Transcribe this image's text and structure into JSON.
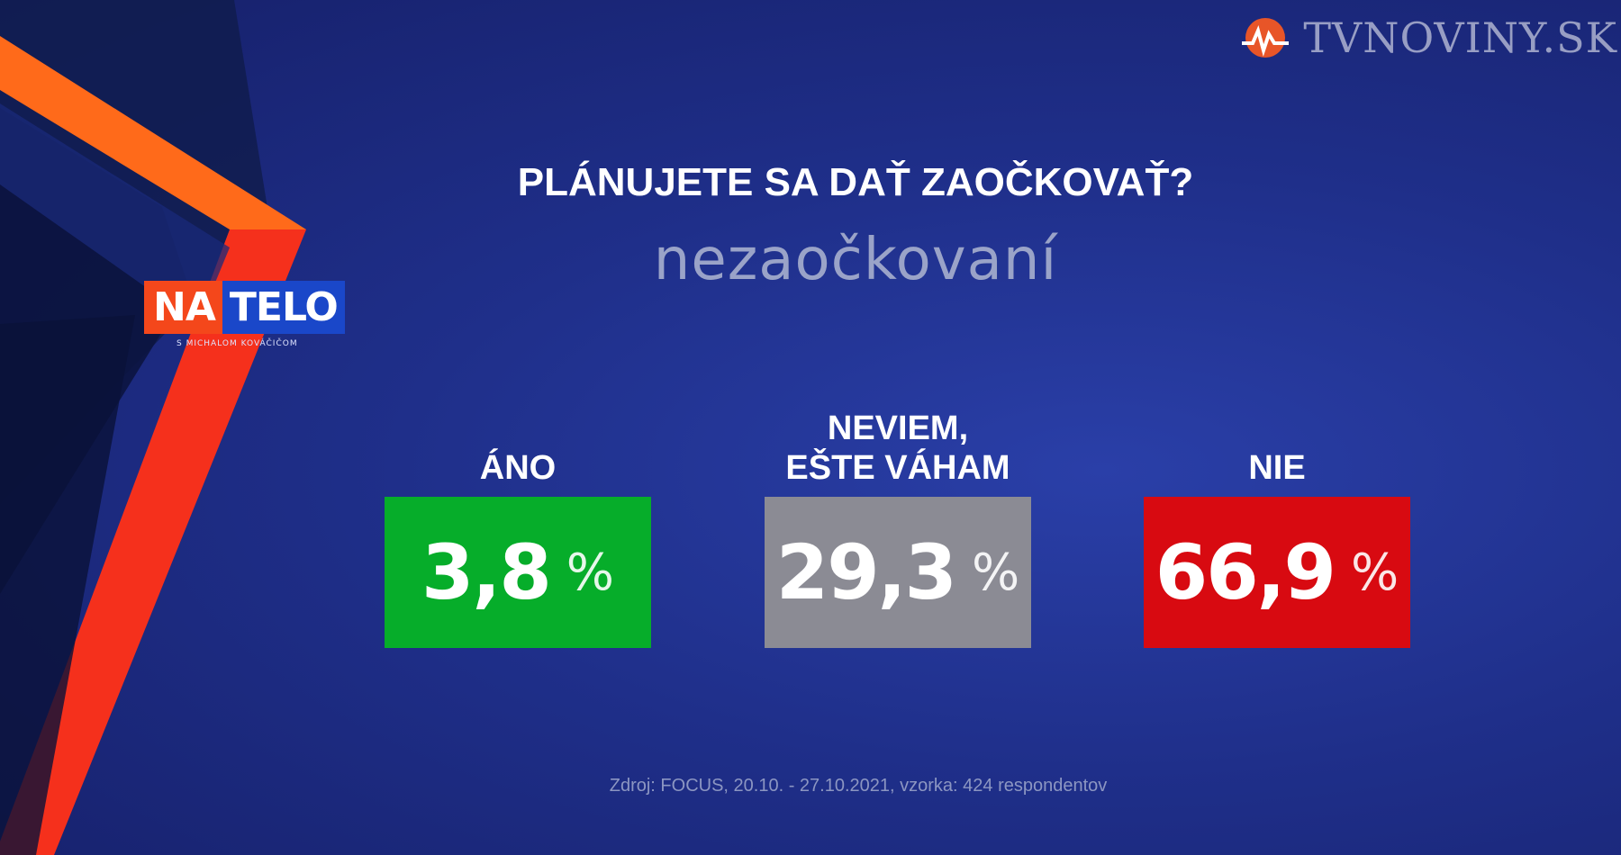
{
  "watermark": {
    "text": "TVNOVINY.SK",
    "icon": "tvnoviny-logo-icon"
  },
  "show_logo": {
    "part1": "NA",
    "part2": "TELO",
    "subtitle": "S MICHALOM KOVÁČIČOM"
  },
  "colors": {
    "ano": "#06ad2a",
    "neviem": "#8b8b94",
    "nie": "#d80a11",
    "accent_orange": "#ff5a17"
  },
  "chart_data": {
    "type": "bar",
    "title": "PLÁNUJETE SA DAŤ ZAOČKOVAŤ?",
    "subtitle": "nezaočkovaní",
    "unit": "%",
    "categories": [
      "ÁNO",
      "NEVIEM, EŠTE VÁHAM",
      "NIE"
    ],
    "category_lines": [
      [
        "ÁNO"
      ],
      [
        "NEVIEM,",
        "EŠTE VÁHAM"
      ],
      [
        "NIE"
      ]
    ],
    "values": [
      3.8,
      29.3,
      66.9
    ],
    "value_labels": [
      "3,8",
      "29,3",
      "66,9"
    ],
    "colors": [
      "#06ad2a",
      "#8b8b94",
      "#d80a11"
    ],
    "source": "Zdroj: FOCUS, 20.10. - 27.10.2021, vzorka: 424 respondentov"
  }
}
